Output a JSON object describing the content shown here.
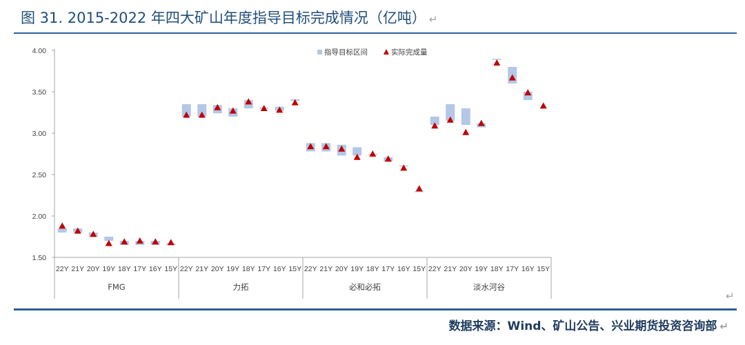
{
  "header": {
    "title": "图 31. 2015-2022 年四大矿山年度指导目标完成情况（亿吨）",
    "return_mark": "↵"
  },
  "footer": {
    "source": "数据来源：Wind、矿山公告、兴业期货投资咨询部",
    "return_mark": "↵"
  },
  "colors": {
    "guidance_bar": "#b4c7e7",
    "actual_marker": "#c00000",
    "axis": "#a6a6a6",
    "title": "#1f4e79",
    "rule": "#2e5e94"
  },
  "chart_data": {
    "type": "floating-bar-with-markers",
    "title": "",
    "xlabel": "",
    "ylabel": "",
    "ylim": [
      1.5,
      4.0
    ],
    "yticks": [
      "1.50",
      "2.00",
      "2.50",
      "3.00",
      "3.50",
      "4.00"
    ],
    "grid": false,
    "legend": [
      {
        "name": "指导目标区间",
        "marker": "square",
        "color_key": "guidance_bar"
      },
      {
        "name": "实际完成量",
        "marker": "triangle",
        "color_key": "actual_marker"
      }
    ],
    "legend_position": "top-center",
    "groups": [
      {
        "name": "FMG",
        "categories": [
          "22Y",
          "21Y",
          "20Y",
          "19Y",
          "18Y",
          "17Y",
          "16Y",
          "15Y"
        ],
        "guidance": [
          [
            1.8,
            1.85
          ],
          [
            1.8,
            1.85
          ],
          [
            1.75,
            1.8
          ],
          [
            1.7,
            1.75
          ],
          [
            1.65,
            1.7
          ],
          [
            1.65,
            1.7
          ],
          [
            1.65,
            1.7
          ],
          [
            1.65,
            1.67
          ]
        ],
        "actual": [
          1.88,
          1.82,
          1.78,
          1.67,
          1.69,
          1.7,
          1.69,
          1.68
        ]
      },
      {
        "name": "力拓",
        "categories": [
          "22Y",
          "21Y",
          "20Y",
          "19Y",
          "18Y",
          "17Y",
          "16Y",
          "15Y"
        ],
        "guidance": [
          [
            3.2,
            3.35
          ],
          [
            3.2,
            3.35
          ],
          [
            3.24,
            3.34
          ],
          [
            3.2,
            3.3
          ],
          [
            3.3,
            3.4
          ],
          [
            3.3,
            3.31
          ],
          [
            3.27,
            3.32
          ],
          [
            3.39,
            3.41
          ]
        ],
        "actual": [
          3.22,
          3.22,
          3.31,
          3.27,
          3.38,
          3.3,
          3.28,
          3.37
        ]
      },
      {
        "name": "必和必拓",
        "categories": [
          "22Y",
          "21Y",
          "20Y",
          "19Y",
          "18Y",
          "17Y",
          "16Y",
          "15Y"
        ],
        "guidance": [
          [
            2.78,
            2.88
          ],
          [
            2.78,
            2.88
          ],
          [
            2.73,
            2.86
          ],
          [
            2.73,
            2.83
          ],
          [
            2.74,
            2.75
          ],
          [
            2.66,
            2.71
          ],
          [
            2.6,
            2.61
          ],
          [
            2.29,
            2.3
          ]
        ],
        "actual": [
          2.84,
          2.84,
          2.81,
          2.71,
          2.75,
          2.69,
          2.58,
          2.33
        ]
      },
      {
        "name": "淡水河谷",
        "categories": [
          "22Y",
          "21Y",
          "20Y",
          "19Y",
          "18Y",
          "17Y",
          "16Y",
          "15Y"
        ],
        "guidance": [
          [
            3.1,
            3.2
          ],
          [
            3.15,
            3.35
          ],
          [
            3.1,
            3.3
          ],
          [
            3.07,
            3.12
          ],
          [
            3.89,
            3.9
          ],
          [
            3.6,
            3.8
          ],
          [
            3.4,
            3.5
          ],
          null
        ],
        "actual": [
          3.09,
          3.16,
          3.01,
          3.12,
          3.85,
          3.67,
          3.49,
          3.33
        ]
      }
    ]
  }
}
